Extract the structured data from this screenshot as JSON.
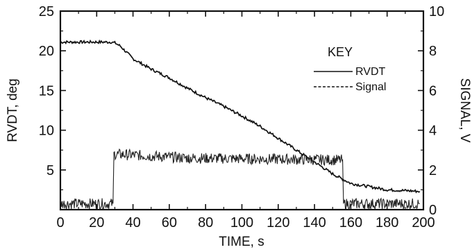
{
  "chart_data": {
    "type": "line",
    "xlabel": "TIME, s",
    "ylabel_left": "RVDT, deg",
    "ylabel_right": "SIGNAL, V",
    "xlim": [
      0,
      200
    ],
    "ylim_left": [
      0,
      25
    ],
    "ylim_right": [
      0,
      10
    ],
    "x_ticks": [
      "0",
      "20",
      "40",
      "60",
      "80",
      "100",
      "120",
      "140",
      "160",
      "180",
      "200"
    ],
    "y_left_ticks": [
      "5",
      "10",
      "15",
      "20",
      "25"
    ],
    "y_right_ticks": [
      "0",
      "2",
      "4",
      "6",
      "8",
      "10"
    ],
    "grid": false,
    "legend": {
      "title": "KEY",
      "position": "top-right",
      "entries": [
        "RVDT",
        "Signal"
      ]
    },
    "series": [
      {
        "name": "RVDT",
        "axis": "left",
        "style": "solid",
        "x": [
          0,
          10,
          20,
          28,
          30,
          33,
          40,
          50,
          60,
          70,
          80,
          90,
          100,
          110,
          120,
          130,
          140,
          150,
          160,
          170,
          180,
          190,
          198
        ],
        "y": [
          21.1,
          21.1,
          21.1,
          21.1,
          21.0,
          20.6,
          19.0,
          17.7,
          16.6,
          15.3,
          14.1,
          13.0,
          11.8,
          10.5,
          9.0,
          7.5,
          6.0,
          4.5,
          3.3,
          2.9,
          2.5,
          2.4,
          2.3
        ]
      },
      {
        "name": "Signal",
        "axis": "right",
        "style": "dashed",
        "x": [
          0,
          29,
          29.5,
          70.5,
          70.8,
          155.5,
          156,
          198
        ],
        "y": [
          0.3,
          0.3,
          2.8,
          2.6,
          2.6,
          2.5,
          0.3,
          0.3
        ]
      }
    ]
  }
}
